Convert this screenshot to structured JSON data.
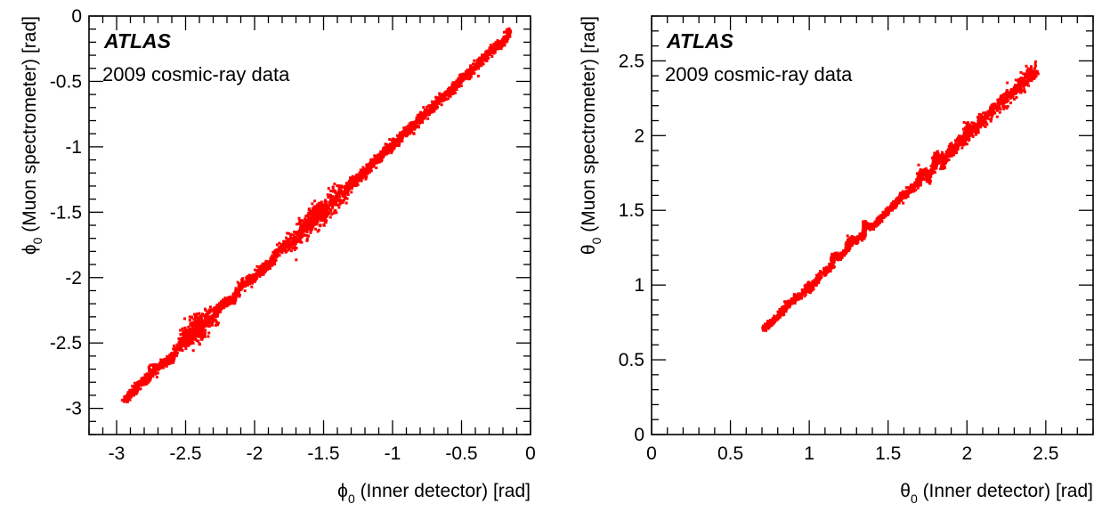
{
  "chart_data": [
    {
      "type": "scatter",
      "id": "phi",
      "experiment_label": "ATLAS",
      "caption": "2009 cosmic-ray data",
      "x_symbol": "ϕ",
      "x_subscript": "0",
      "x_text": " (Inner detector) [rad]",
      "y_symbol": "ϕ",
      "y_subscript": "0",
      "y_text": " (Muon spectrometer) [rad]",
      "xlim": [
        -3.2,
        0
      ],
      "ylim": [
        -3.2,
        0
      ],
      "xticks": [
        -3,
        -2.5,
        -2,
        -1.5,
        -1,
        -0.5,
        0
      ],
      "yticks": [
        -3,
        -2.5,
        -2,
        -1.5,
        -1,
        -0.5,
        0
      ],
      "grid": false,
      "marker_color": "#ff0000",
      "series": [
        {
          "points": [
            [
              -2.95,
              -2.94
            ],
            [
              -2.9,
              -2.9
            ],
            [
              -2.85,
              -2.83
            ],
            [
              -2.8,
              -2.79
            ],
            [
              -2.75,
              -2.72
            ],
            [
              -2.7,
              -2.69
            ],
            [
              -2.65,
              -2.64
            ],
            [
              -2.6,
              -2.62
            ],
            [
              -2.55,
              -2.53
            ],
            [
              -2.5,
              -2.46
            ],
            [
              -2.45,
              -2.48
            ],
            [
              -2.45,
              -2.36
            ],
            [
              -2.4,
              -2.35
            ],
            [
              -2.4,
              -2.44
            ],
            [
              -2.35,
              -2.3
            ],
            [
              -2.3,
              -2.32
            ],
            [
              -2.25,
              -2.22
            ],
            [
              -2.2,
              -2.18
            ],
            [
              -2.15,
              -2.17
            ],
            [
              -2.1,
              -2.06
            ],
            [
              -2.05,
              -2.02
            ],
            [
              -2.0,
              -2.01
            ],
            [
              -1.95,
              -1.93
            ],
            [
              -1.9,
              -1.91
            ],
            [
              -1.85,
              -1.83
            ],
            [
              -1.8,
              -1.77
            ],
            [
              -1.75,
              -1.75
            ],
            [
              -1.7,
              -1.69
            ],
            [
              -1.65,
              -1.62
            ],
            [
              -1.6,
              -1.61
            ],
            [
              -1.6,
              -1.55
            ],
            [
              -1.55,
              -1.55
            ],
            [
              -1.55,
              -1.5
            ],
            [
              -1.5,
              -1.48
            ],
            [
              -1.5,
              -1.53
            ],
            [
              -1.45,
              -1.44
            ],
            [
              -1.4,
              -1.37
            ],
            [
              -1.35,
              -1.35
            ],
            [
              -1.3,
              -1.28
            ],
            [
              -1.25,
              -1.24
            ],
            [
              -1.2,
              -1.2
            ],
            [
              -1.15,
              -1.13
            ],
            [
              -1.1,
              -1.09
            ],
            [
              -1.05,
              -1.03
            ],
            [
              -1.0,
              -0.99
            ],
            [
              -0.95,
              -0.94
            ],
            [
              -0.9,
              -0.88
            ],
            [
              -0.85,
              -0.85
            ],
            [
              -0.8,
              -0.78
            ],
            [
              -0.75,
              -0.74
            ],
            [
              -0.7,
              -0.69
            ],
            [
              -0.65,
              -0.63
            ],
            [
              -0.6,
              -0.6
            ],
            [
              -0.55,
              -0.54
            ],
            [
              -0.5,
              -0.48
            ],
            [
              -0.45,
              -0.44
            ],
            [
              -0.4,
              -0.39
            ],
            [
              -0.35,
              -0.33
            ],
            [
              -0.3,
              -0.28
            ],
            [
              -0.25,
              -0.23
            ],
            [
              -0.2,
              -0.2
            ],
            [
              -0.15,
              -0.13
            ]
          ]
        }
      ]
    },
    {
      "type": "scatter",
      "id": "theta",
      "experiment_label": "ATLAS",
      "caption": "2009 cosmic-ray data",
      "x_symbol": "θ",
      "x_subscript": "0",
      "x_text": " (Inner detector) [rad]",
      "y_symbol": "θ",
      "y_subscript": "0",
      "y_text": " (Muon spectrometer) [rad]",
      "xlim": [
        0,
        2.8
      ],
      "ylim": [
        0,
        2.8
      ],
      "xticks": [
        0,
        0.5,
        1,
        1.5,
        2,
        2.5
      ],
      "yticks": [
        0,
        0.5,
        1,
        1.5,
        2,
        2.5
      ],
      "grid": false,
      "marker_color": "#ff0000",
      "series": [
        {
          "points": [
            [
              0.71,
              0.71
            ],
            [
              0.75,
              0.74
            ],
            [
              0.8,
              0.79
            ],
            [
              0.85,
              0.86
            ],
            [
              0.9,
              0.9
            ],
            [
              0.95,
              0.93
            ],
            [
              1.0,
              1.0
            ],
            [
              1.0,
              0.97
            ],
            [
              1.05,
              1.03
            ],
            [
              1.1,
              1.1
            ],
            [
              1.15,
              1.13
            ],
            [
              1.15,
              1.2
            ],
            [
              1.2,
              1.19
            ],
            [
              1.25,
              1.25
            ],
            [
              1.25,
              1.3
            ],
            [
              1.3,
              1.3
            ],
            [
              1.35,
              1.34
            ],
            [
              1.35,
              1.4
            ],
            [
              1.4,
              1.39
            ],
            [
              1.45,
              1.44
            ],
            [
              1.5,
              1.5
            ],
            [
              1.55,
              1.55
            ],
            [
              1.6,
              1.6
            ],
            [
              1.65,
              1.65
            ],
            [
              1.7,
              1.69
            ],
            [
              1.7,
              1.75
            ],
            [
              1.75,
              1.76
            ],
            [
              1.75,
              1.7
            ],
            [
              1.8,
              1.8
            ],
            [
              1.8,
              1.86
            ],
            [
              1.85,
              1.85
            ],
            [
              1.85,
              1.8
            ],
            [
              1.9,
              1.92
            ],
            [
              1.9,
              1.88
            ],
            [
              1.95,
              1.95
            ],
            [
              2.0,
              1.99
            ],
            [
              2.0,
              2.05
            ],
            [
              2.05,
              2.04
            ],
            [
              2.1,
              2.1
            ],
            [
              2.15,
              2.15
            ],
            [
              2.2,
              2.2
            ],
            [
              2.25,
              2.26
            ],
            [
              2.3,
              2.29
            ],
            [
              2.35,
              2.34
            ],
            [
              2.4,
              2.41
            ],
            [
              2.43,
              2.42
            ]
          ]
        }
      ]
    }
  ]
}
